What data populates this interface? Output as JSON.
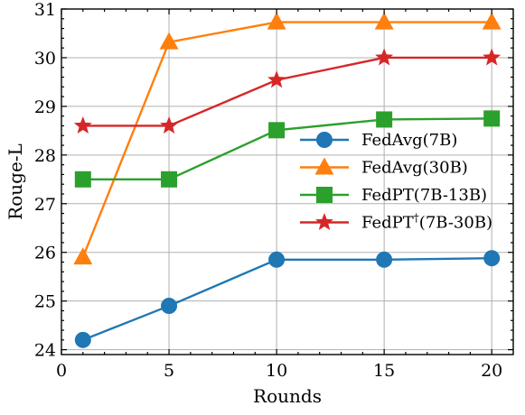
{
  "chart_data": {
    "type": "line",
    "xlabel": "Rounds",
    "ylabel": "Rouge-L",
    "xlim": [
      0,
      21
    ],
    "ylim": [
      23.9,
      31
    ],
    "xticks": [
      0,
      5,
      10,
      15,
      20
    ],
    "yticks": [
      24,
      25,
      26,
      27,
      28,
      29,
      30,
      31
    ],
    "grid": true,
    "legend_position": "right",
    "series": [
      {
        "name": "FedAvg(7B)",
        "color": "#1f77b4",
        "marker": "circle",
        "x": [
          1,
          5,
          10,
          15,
          20
        ],
        "y": [
          24.2,
          24.9,
          25.85,
          25.85,
          25.88
        ]
      },
      {
        "name": "FedAvg(30B)",
        "color": "#ff7f0e",
        "marker": "triangle",
        "x": [
          1,
          5,
          10,
          15,
          20
        ],
        "y": [
          25.9,
          30.32,
          30.73,
          30.73,
          30.73
        ]
      },
      {
        "name": "FedPT(7B-13B)",
        "color": "#2ca02c",
        "marker": "square",
        "x": [
          1,
          5,
          10,
          15,
          20
        ],
        "y": [
          27.5,
          27.5,
          28.51,
          28.73,
          28.75
        ]
      },
      {
        "name": "FedPT",
        "name_superscript": "†",
        "name_suffix": "(7B-30B)",
        "color": "#d62728",
        "marker": "star",
        "x": [
          1,
          5,
          10,
          15,
          20
        ],
        "y": [
          28.6,
          28.6,
          29.54,
          30.0,
          30.0
        ]
      }
    ]
  }
}
